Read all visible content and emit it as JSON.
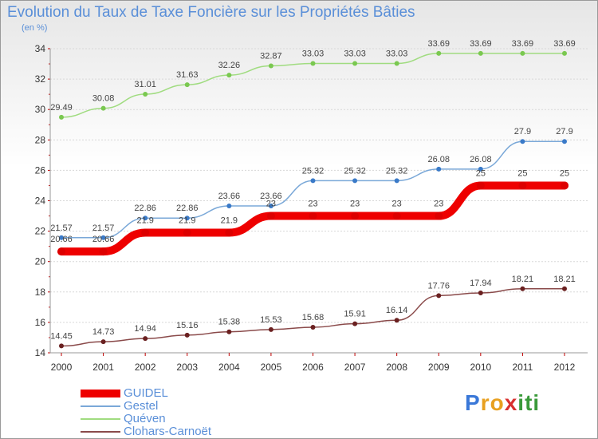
{
  "title": "Evolution du Taux de Taxe Foncière sur les Propriétés Bâties",
  "unit_label": "(en %)",
  "brand": {
    "text": "Proxiti",
    "letters": [
      "P",
      "r",
      "o",
      "x",
      "i",
      "t",
      "i"
    ],
    "colors": [
      "#3a78d8",
      "#e8a020",
      "#e8a020",
      "#d83030",
      "#3a9a3a",
      "#3a9a3a",
      "#3a9a3a"
    ]
  },
  "chart_data": {
    "type": "line",
    "title": "Evolution du Taux de Taxe Foncière sur les Propriétés Bâties",
    "ylabel": "(en %)",
    "xlabel": "",
    "x": [
      "2000",
      "2001",
      "2002",
      "2003",
      "2004",
      "2005",
      "2006",
      "2007",
      "2008",
      "2009",
      "2010",
      "2011",
      "2012"
    ],
    "ylim": [
      14,
      34
    ],
    "yticks": [
      14,
      16,
      18,
      20,
      22,
      24,
      26,
      28,
      30,
      32,
      34
    ],
    "grid": "horizontal",
    "legend": "bottom-left",
    "series": [
      {
        "name": "GUIDEL",
        "color": "#ee0000",
        "marker": "#dd0000",
        "emphasis": true,
        "values": [
          20.66,
          20.66,
          21.9,
          21.9,
          21.9,
          23,
          23,
          23,
          23,
          23,
          25,
          25,
          25
        ],
        "labels": [
          "20.66",
          "20.66",
          "21.9",
          "21.9",
          "21.9",
          "23",
          "23",
          "23",
          "23",
          "23",
          "25",
          "25",
          "25"
        ]
      },
      {
        "name": "Gestel",
        "color": "#7aa8d8",
        "marker": "#3a7ac8",
        "values": [
          21.57,
          21.57,
          22.86,
          22.86,
          23.66,
          23.66,
          25.32,
          25.32,
          25.32,
          26.08,
          26.08,
          27.9,
          27.9
        ],
        "labels": [
          "21.57",
          "21.57",
          "22.86",
          "22.86",
          "23.66",
          "23.66",
          "25.32",
          "25.32",
          "25.32",
          "26.08",
          "26.08",
          "27.9",
          "27.9"
        ]
      },
      {
        "name": "Quéven",
        "color": "#a0dc80",
        "marker": "#7ac850",
        "values": [
          29.49,
          30.08,
          31.01,
          31.63,
          32.26,
          32.87,
          33.03,
          33.03,
          33.03,
          33.69,
          33.69,
          33.69,
          33.69
        ],
        "labels": [
          "29.49",
          "30.08",
          "31.01",
          "31.63",
          "32.26",
          "32.87",
          "33.03",
          "33.03",
          "33.03",
          "33.69",
          "33.69",
          "33.69",
          "33.69"
        ]
      },
      {
        "name": "Clohars-Carnoët",
        "color": "#8a4a4a",
        "marker": "#6a2020",
        "values": [
          14.45,
          14.73,
          14.94,
          15.16,
          15.38,
          15.53,
          15.68,
          15.91,
          16.14,
          17.76,
          17.94,
          18.21,
          18.21
        ],
        "labels": [
          "14.45",
          "14.73",
          "14.94",
          "15.16",
          "15.38",
          "15.53",
          "15.68",
          "15.91",
          "16.14",
          "17.76",
          "17.94",
          "18.21",
          "18.21"
        ]
      }
    ]
  }
}
